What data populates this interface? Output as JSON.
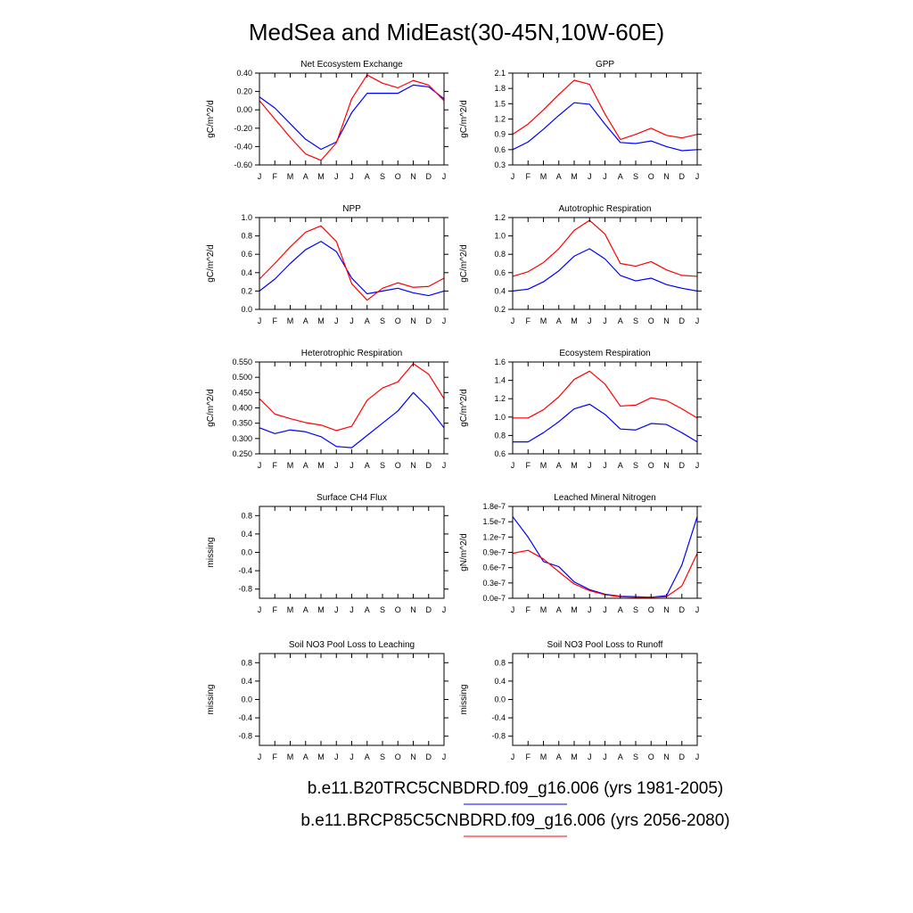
{
  "title": "MedSea and MidEast(30-45N,10W-60E)",
  "months": [
    "J",
    "F",
    "M",
    "A",
    "M",
    "J",
    "J",
    "A",
    "S",
    "O",
    "N",
    "D",
    "J"
  ],
  "legend": [
    {
      "label": "b.e11.B20TRC5CNBDRD.f09_g16.006 (yrs 1981-2005)",
      "color": "#0000ff"
    },
    {
      "label": "b.e11.BRCP85C5CNBDRD.f09_g16.006 (yrs 2056-2080)",
      "color": "#ff0000"
    }
  ],
  "chart_data": [
    {
      "type": "line",
      "title": "Net Ecosystem Exchange",
      "ylabel": "gC/m^2/d",
      "ylim": [
        -0.6,
        0.4
      ],
      "yticks": [
        -0.6,
        -0.4,
        -0.2,
        0.0,
        0.2,
        0.4
      ],
      "ytick_labels": [
        "-0.60",
        "-0.40",
        "-0.20",
        "0.00",
        "0.20",
        "0.40"
      ],
      "series": [
        {
          "name": "b.e11.B20TRC5CNBDRD.f09_g16.006 (yrs 1981-2005)",
          "color": "#0000ff",
          "values": [
            0.14,
            0.02,
            -0.15,
            -0.32,
            -0.43,
            -0.35,
            -0.03,
            0.18,
            0.18,
            0.18,
            0.27,
            0.25,
            0.12
          ]
        },
        {
          "name": "b.e11.BRCP85C5CNBDRD.f09_g16.006 (yrs 2056-2080)",
          "color": "#ff0000",
          "values": [
            0.1,
            -0.1,
            -0.3,
            -0.48,
            -0.55,
            -0.36,
            0.12,
            0.38,
            0.29,
            0.24,
            0.32,
            0.27,
            0.1
          ]
        }
      ]
    },
    {
      "type": "line",
      "title": "GPP",
      "ylabel": "gC/m^2/d",
      "ylim": [
        0.3,
        2.1
      ],
      "yticks": [
        0.3,
        0.6,
        0.9,
        1.2,
        1.5,
        1.8,
        2.1
      ],
      "ytick_labels": [
        "0.3",
        "0.6",
        "0.9",
        "1.2",
        "1.5",
        "1.8",
        "2.1"
      ],
      "series": [
        {
          "name": "b.e11.B20TRC5CNBDRD.f09_g16.006 (yrs 1981-2005)",
          "color": "#0000ff",
          "values": [
            0.6,
            0.75,
            1.0,
            1.27,
            1.52,
            1.49,
            1.1,
            0.74,
            0.72,
            0.77,
            0.66,
            0.58,
            0.6
          ]
        },
        {
          "name": "b.e11.BRCP85C5CNBDRD.f09_g16.006 (yrs 2056-2080)",
          "color": "#ff0000",
          "values": [
            0.9,
            1.1,
            1.38,
            1.68,
            1.96,
            1.88,
            1.3,
            0.8,
            0.9,
            1.02,
            0.88,
            0.83,
            0.9
          ]
        }
      ]
    },
    {
      "type": "line",
      "title": "NPP",
      "ylabel": "gC/m^2/d",
      "ylim": [
        0.0,
        1.0
      ],
      "yticks": [
        0.0,
        0.2,
        0.4,
        0.6,
        0.8,
        1.0
      ],
      "ytick_labels": [
        "0.0",
        "0.2",
        "0.4",
        "0.6",
        "0.8",
        "1.0"
      ],
      "series": [
        {
          "name": "b.e11.B20TRC5CNBDRD.f09_g16.006 (yrs 1981-2005)",
          "color": "#0000ff",
          "values": [
            0.2,
            0.33,
            0.5,
            0.65,
            0.74,
            0.63,
            0.34,
            0.17,
            0.2,
            0.23,
            0.18,
            0.15,
            0.2
          ]
        },
        {
          "name": "b.e11.BRCP85C5CNBDRD.f09_g16.006 (yrs 2056-2080)",
          "color": "#ff0000",
          "values": [
            0.33,
            0.5,
            0.68,
            0.84,
            0.91,
            0.74,
            0.28,
            0.1,
            0.23,
            0.29,
            0.24,
            0.25,
            0.34
          ]
        }
      ]
    },
    {
      "type": "line",
      "title": "Autotrophic Respiration",
      "ylabel": "gC/m^2/d",
      "ylim": [
        0.2,
        1.2
      ],
      "yticks": [
        0.2,
        0.4,
        0.6,
        0.8,
        1.0,
        1.2
      ],
      "ytick_labels": [
        "0.2",
        "0.4",
        "0.6",
        "0.8",
        "1.0",
        "1.2"
      ],
      "series": [
        {
          "name": "b.e11.B20TRC5CNBDRD.f09_g16.006 (yrs 1981-2005)",
          "color": "#0000ff",
          "values": [
            0.4,
            0.42,
            0.5,
            0.62,
            0.78,
            0.86,
            0.75,
            0.57,
            0.51,
            0.54,
            0.47,
            0.43,
            0.4
          ]
        },
        {
          "name": "b.e11.BRCP85C5CNBDRD.f09_g16.006 (yrs 2056-2080)",
          "color": "#ff0000",
          "values": [
            0.56,
            0.61,
            0.71,
            0.86,
            1.06,
            1.17,
            1.02,
            0.7,
            0.67,
            0.72,
            0.63,
            0.57,
            0.56
          ]
        }
      ]
    },
    {
      "type": "line",
      "title": "Heterotrophic Respiration",
      "ylabel": "gC/m^2/d",
      "ylim": [
        0.25,
        0.55
      ],
      "yticks": [
        0.25,
        0.3,
        0.35,
        0.4,
        0.45,
        0.5,
        0.55
      ],
      "ytick_labels": [
        "0.250",
        "0.300",
        "0.350",
        "0.400",
        "0.450",
        "0.500",
        "0.550"
      ],
      "series": [
        {
          "name": "b.e11.B20TRC5CNBDRD.f09_g16.006 (yrs 1981-2005)",
          "color": "#0000ff",
          "values": [
            0.335,
            0.316,
            0.328,
            0.322,
            0.306,
            0.274,
            0.27,
            0.31,
            0.35,
            0.39,
            0.45,
            0.4,
            0.335
          ]
        },
        {
          "name": "b.e11.BRCP85C5CNBDRD.f09_g16.006 (yrs 2056-2080)",
          "color": "#ff0000",
          "values": [
            0.43,
            0.38,
            0.365,
            0.352,
            0.344,
            0.326,
            0.34,
            0.425,
            0.465,
            0.485,
            0.545,
            0.51,
            0.43
          ]
        }
      ]
    },
    {
      "type": "line",
      "title": "Ecosystem Respiration",
      "ylabel": "gC/m^2/d",
      "ylim": [
        0.6,
        1.6
      ],
      "yticks": [
        0.6,
        0.8,
        1.0,
        1.2,
        1.4,
        1.6
      ],
      "ytick_labels": [
        "0.6",
        "0.8",
        "1.0",
        "1.2",
        "1.4",
        "1.6"
      ],
      "series": [
        {
          "name": "b.e11.B20TRC5CNBDRD.f09_g16.006 (yrs 1981-2005)",
          "color": "#0000ff",
          "values": [
            0.73,
            0.73,
            0.83,
            0.95,
            1.09,
            1.14,
            1.03,
            0.87,
            0.86,
            0.93,
            0.92,
            0.83,
            0.73
          ]
        },
        {
          "name": "b.e11.BRCP85C5CNBDRD.f09_g16.006 (yrs 2056-2080)",
          "color": "#ff0000",
          "values": [
            0.99,
            0.99,
            1.08,
            1.22,
            1.41,
            1.5,
            1.36,
            1.12,
            1.13,
            1.21,
            1.18,
            1.09,
            0.99
          ]
        }
      ]
    },
    {
      "type": "line",
      "title": "Surface CH4 Flux",
      "ylabel": "missing",
      "ylim": [
        -1.0,
        1.0
      ],
      "yticks": [
        -0.8,
        -0.4,
        0.0,
        0.4,
        0.8
      ],
      "ytick_labels": [
        "-0.8",
        "-0.4",
        "0.0",
        "0.4",
        "0.8"
      ],
      "series": []
    },
    {
      "type": "line",
      "title": "Leached Mineral Nitrogen",
      "ylabel": "gN/m^2/d",
      "ylim": [
        0.0,
        1.8e-07
      ],
      "yticks": [
        0.0,
        3e-08,
        6e-08,
        9e-08,
        1.2e-07,
        1.5e-07,
        1.8e-07
      ],
      "ytick_labels": [
        "0.0e-7",
        "0.3e-7",
        "0.6e-7",
        "0.9e-7",
        "1.2e-7",
        "1.5e-7",
        "1.8e-7"
      ],
      "series": [
        {
          "name": "b.e11.B20TRC5CNBDRD.f09_g16.006 (yrs 1981-2005)",
          "color": "#0000ff",
          "values": [
            1.6e-07,
            1.2e-07,
            7.2e-08,
            6.2e-08,
            3.2e-08,
            1.7e-08,
            8e-09,
            4e-09,
            3e-09,
            2e-09,
            5e-09,
            6.5e-08,
            1.6e-07
          ]
        },
        {
          "name": "b.e11.BRCP85C5CNBDRD.f09_g16.006 (yrs 2056-2080)",
          "color": "#ff0000",
          "values": [
            8.8e-08,
            9.4e-08,
            7.7e-08,
            5.2e-08,
            2.8e-08,
            1.5e-08,
            7e-09,
            3e-09,
            2e-09,
            2e-09,
            3e-09,
            2.4e-08,
            8.8e-08
          ]
        }
      ]
    },
    {
      "type": "line",
      "title": "Soil NO3 Pool Loss to Leaching",
      "ylabel": "missing",
      "ylim": [
        -1.0,
        1.0
      ],
      "yticks": [
        -0.8,
        -0.4,
        0.0,
        0.4,
        0.8
      ],
      "ytick_labels": [
        "-0.8",
        "-0.4",
        "0.0",
        "0.4",
        "0.8"
      ],
      "series": []
    },
    {
      "type": "line",
      "title": "Soil NO3 Pool Loss to Runoff",
      "ylabel": "missing",
      "ylim": [
        -1.0,
        1.0
      ],
      "yticks": [
        -0.8,
        -0.4,
        0.0,
        0.4,
        0.8
      ],
      "ytick_labels": [
        "-0.8",
        "-0.4",
        "0.0",
        "0.4",
        "0.8"
      ],
      "series": []
    }
  ]
}
